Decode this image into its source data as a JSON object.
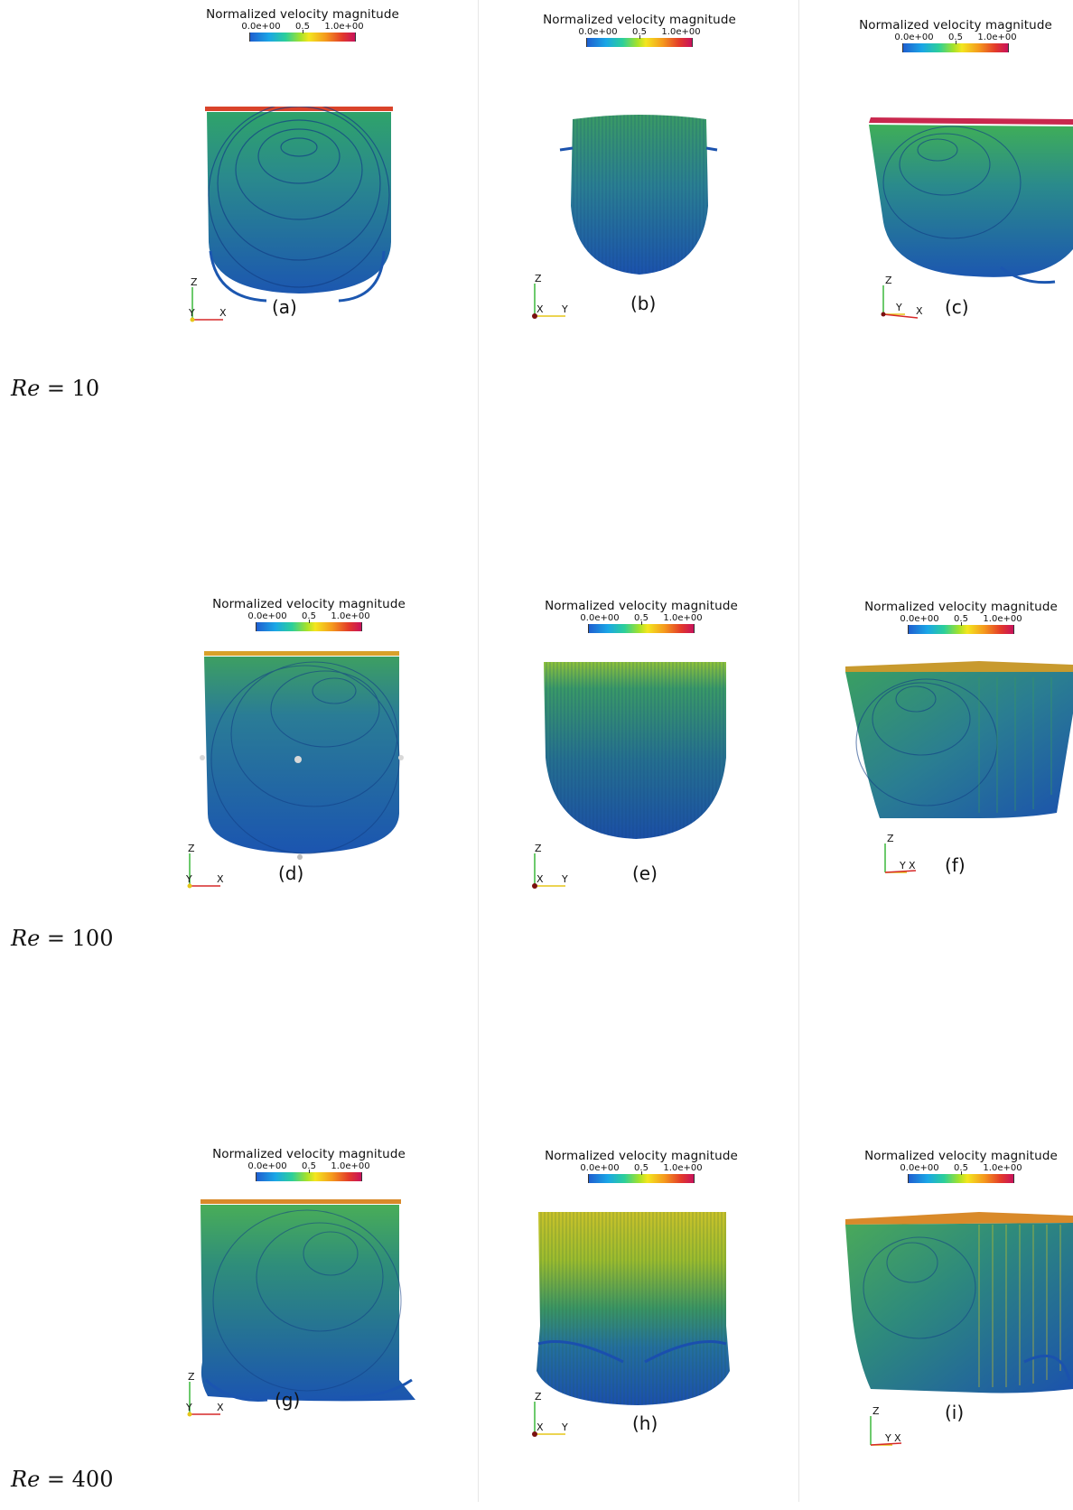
{
  "colorbar": {
    "title": "Normalized velocity magnitude",
    "tick_min": "0.0e+00",
    "tick_mid": "0.5",
    "tick_max": "1.0e+00",
    "colors": [
      "#1f5fd0",
      "#1aa6e6",
      "#2ccf9a",
      "#a5e22a",
      "#f3e61f",
      "#f59a1d",
      "#e33a2a",
      "#c8125c"
    ]
  },
  "axes": {
    "z": "Z",
    "x": "X",
    "y": "Y"
  },
  "rows": [
    {
      "re_label": "Re = 10",
      "re_sym": "Re",
      "re_eq": " = ",
      "re_val": "10"
    },
    {
      "re_label": "Re = 100",
      "re_sym": "Re",
      "re_eq": " = ",
      "re_val": "100"
    },
    {
      "re_label": "Re = 400",
      "re_sym": "Re",
      "re_eq": " = ",
      "re_val": "400"
    }
  ],
  "panels": {
    "a": {
      "label": "(a)"
    },
    "b": {
      "label": "(b)"
    },
    "c": {
      "label": "(c)"
    },
    "d": {
      "label": "(d)"
    },
    "e": {
      "label": "(e)"
    },
    "f": {
      "label": "(f)"
    },
    "g": {
      "label": "(g)"
    },
    "h": {
      "label": "(h)"
    },
    "i": {
      "label": "(i)"
    }
  }
}
